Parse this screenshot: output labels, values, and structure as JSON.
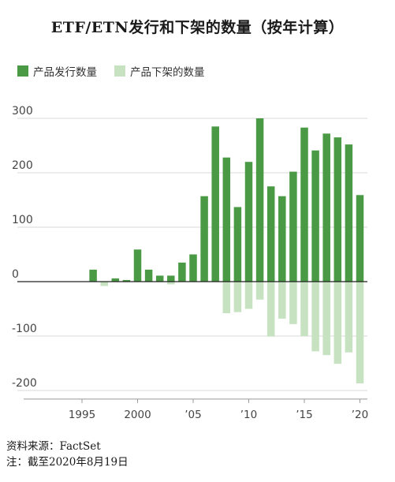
{
  "title": "ETF/ETN发行和下架的数量（按年计算）",
  "legend": [
    {
      "label": "产品发行数量",
      "color": "#4a9a45"
    },
    {
      "label": "产品下架的数量",
      "color": "#c6e2c0"
    }
  ],
  "source_line": "资料来源：FactSet",
  "note_line": "注：截至2020年8月19日",
  "chart_data": {
    "type": "bar",
    "title": "ETF/ETN发行和下架的数量（按年计算）",
    "xlabel": "",
    "ylabel": "",
    "ylim": [
      -210,
      305
    ],
    "yticks": [
      300,
      200,
      100,
      0,
      -100,
      -200
    ],
    "ytick_labels": [
      "300",
      "200",
      "100",
      "0",
      "-100",
      "-200"
    ],
    "xtick_labels": [
      {
        "year": 1995,
        "label": "1995"
      },
      {
        "year": 2000,
        "label": "2000"
      },
      {
        "year": 2005,
        "label": "’05"
      },
      {
        "year": 2010,
        "label": "’10"
      },
      {
        "year": 2015,
        "label": "’15"
      },
      {
        "year": 2020,
        "label": "’20"
      }
    ],
    "categories": [
      1996,
      1997,
      1998,
      1999,
      2000,
      2001,
      2002,
      2003,
      2004,
      2005,
      2006,
      2007,
      2008,
      2009,
      2010,
      2011,
      2012,
      2013,
      2014,
      2015,
      2016,
      2017,
      2018,
      2019,
      2020
    ],
    "grid": true,
    "series": [
      {
        "name": "产品发行数量",
        "color": "#4a9a45",
        "values": [
          22,
          0,
          6,
          3,
          59,
          22,
          11,
          11,
          35,
          50,
          157,
          285,
          228,
          137,
          220,
          300,
          175,
          157,
          202,
          283,
          241,
          272,
          265,
          252,
          159
        ]
      },
      {
        "name": "产品下架的数量",
        "color": "#c6e2c0",
        "values": [
          0,
          -8,
          0,
          0,
          0,
          0,
          0,
          -5,
          0,
          0,
          0,
          0,
          -58,
          -56,
          -50,
          -33,
          -101,
          -68,
          -78,
          -100,
          -128,
          -135,
          -151,
          -130,
          -187
        ]
      }
    ]
  }
}
